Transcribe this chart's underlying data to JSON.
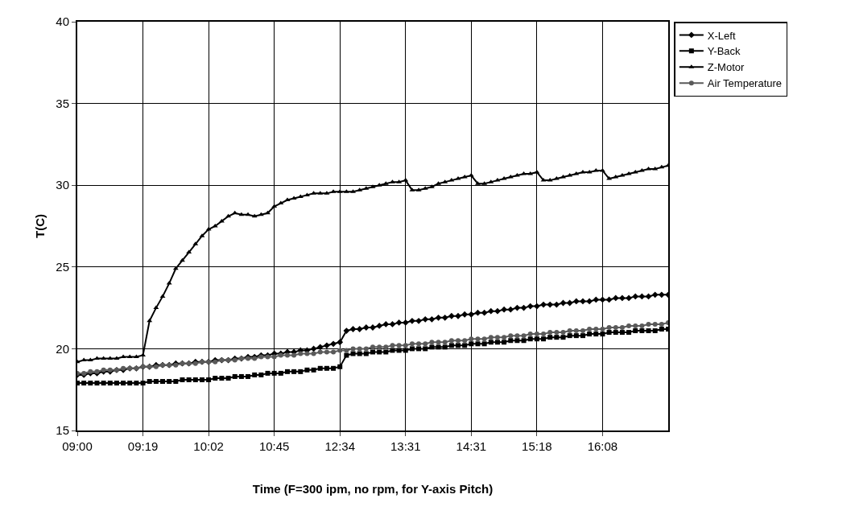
{
  "chart_data": {
    "type": "line",
    "xlabel": "Time (F=300 ipm, no rpm, for Y-axis Pitch)",
    "ylabel": "T(C)",
    "categories": [
      "09:00",
      null,
      null,
      null,
      null,
      null,
      null,
      null,
      null,
      null,
      "09:19",
      null,
      null,
      null,
      null,
      null,
      null,
      null,
      null,
      null,
      "10:02",
      null,
      null,
      null,
      null,
      null,
      null,
      null,
      null,
      null,
      "10:45",
      null,
      null,
      null,
      null,
      null,
      null,
      null,
      null,
      null,
      "12:34",
      null,
      null,
      null,
      null,
      null,
      null,
      null,
      null,
      null,
      "13:31",
      null,
      null,
      null,
      null,
      null,
      null,
      null,
      null,
      null,
      "14:31",
      null,
      null,
      null,
      null,
      null,
      null,
      null,
      null,
      null,
      "15:18",
      null,
      null,
      null,
      null,
      null,
      null,
      null,
      null,
      null,
      "16:08",
      null,
      null,
      null,
      null,
      null,
      null,
      null,
      null,
      null,
      null
    ],
    "ylim": [
      15,
      40
    ],
    "yticks": [
      15,
      20,
      25,
      30,
      35,
      40
    ],
    "grid": true,
    "legend": "top right",
    "series": [
      {
        "name": "X-Left",
        "color": "#000000",
        "marker": "diamond",
        "values": [
          18.4,
          18.4,
          18.5,
          18.5,
          18.6,
          18.6,
          18.7,
          18.7,
          18.8,
          18.8,
          18.9,
          18.9,
          19.0,
          19.0,
          19.0,
          19.1,
          19.1,
          19.1,
          19.2,
          19.2,
          19.2,
          19.3,
          19.3,
          19.3,
          19.4,
          19.4,
          19.5,
          19.5,
          19.6,
          19.6,
          19.7,
          19.7,
          19.8,
          19.8,
          19.9,
          19.9,
          20.0,
          20.1,
          20.2,
          20.3,
          20.4,
          21.1,
          21.2,
          21.2,
          21.3,
          21.3,
          21.4,
          21.5,
          21.5,
          21.6,
          21.6,
          21.7,
          21.7,
          21.8,
          21.8,
          21.9,
          21.9,
          22.0,
          22.0,
          22.1,
          22.1,
          22.2,
          22.2,
          22.3,
          22.3,
          22.4,
          22.4,
          22.5,
          22.5,
          22.6,
          22.6,
          22.7,
          22.7,
          22.7,
          22.8,
          22.8,
          22.9,
          22.9,
          22.9,
          23.0,
          23.0,
          23.0,
          23.1,
          23.1,
          23.1,
          23.2,
          23.2,
          23.2,
          23.3,
          23.3,
          23.3
        ]
      },
      {
        "name": "Y-Back",
        "color": "#000000",
        "marker": "square",
        "values": [
          17.9,
          17.9,
          17.9,
          17.9,
          17.9,
          17.9,
          17.9,
          17.9,
          17.9,
          17.9,
          17.9,
          18.0,
          18.0,
          18.0,
          18.0,
          18.0,
          18.1,
          18.1,
          18.1,
          18.1,
          18.1,
          18.2,
          18.2,
          18.2,
          18.3,
          18.3,
          18.3,
          18.4,
          18.4,
          18.5,
          18.5,
          18.5,
          18.6,
          18.6,
          18.6,
          18.7,
          18.7,
          18.8,
          18.8,
          18.8,
          18.9,
          19.6,
          19.7,
          19.7,
          19.7,
          19.8,
          19.8,
          19.8,
          19.9,
          19.9,
          19.9,
          20.0,
          20.0,
          20.0,
          20.1,
          20.1,
          20.1,
          20.2,
          20.2,
          20.2,
          20.3,
          20.3,
          20.3,
          20.4,
          20.4,
          20.4,
          20.5,
          20.5,
          20.5,
          20.6,
          20.6,
          20.6,
          20.7,
          20.7,
          20.7,
          20.8,
          20.8,
          20.8,
          20.9,
          20.9,
          20.9,
          21.0,
          21.0,
          21.0,
          21.0,
          21.1,
          21.1,
          21.1,
          21.1,
          21.2,
          21.2
        ]
      },
      {
        "name": "Z-Motor",
        "color": "#000000",
        "marker": "triangle",
        "values": [
          19.2,
          19.3,
          19.3,
          19.4,
          19.4,
          19.4,
          19.4,
          19.5,
          19.5,
          19.5,
          19.6,
          21.7,
          22.5,
          23.2,
          24.0,
          24.9,
          25.4,
          25.9,
          26.4,
          26.9,
          27.3,
          27.5,
          27.8,
          28.1,
          28.3,
          28.2,
          28.2,
          28.1,
          28.2,
          28.3,
          28.7,
          28.9,
          29.1,
          29.2,
          29.3,
          29.4,
          29.5,
          29.5,
          29.5,
          29.6,
          29.6,
          29.6,
          29.6,
          29.7,
          29.8,
          29.9,
          30.0,
          30.1,
          30.2,
          30.2,
          30.3,
          29.7,
          29.7,
          29.8,
          29.9,
          30.1,
          30.2,
          30.3,
          30.4,
          30.5,
          30.6,
          30.1,
          30.1,
          30.2,
          30.3,
          30.4,
          30.5,
          30.6,
          30.7,
          30.7,
          30.8,
          30.3,
          30.3,
          30.4,
          30.5,
          30.6,
          30.7,
          30.8,
          30.8,
          30.9,
          30.9,
          30.4,
          30.5,
          30.6,
          30.7,
          30.8,
          30.9,
          31.0,
          31.0,
          31.1,
          31.2
        ]
      },
      {
        "name": "Air Temperature",
        "color": "#5a5a5a",
        "marker": "circle",
        "values": [
          18.5,
          18.5,
          18.6,
          18.6,
          18.7,
          18.7,
          18.7,
          18.8,
          18.8,
          18.8,
          18.9,
          18.9,
          18.9,
          19.0,
          19.0,
          19.0,
          19.1,
          19.1,
          19.1,
          19.2,
          19.2,
          19.2,
          19.3,
          19.3,
          19.3,
          19.4,
          19.4,
          19.4,
          19.5,
          19.5,
          19.5,
          19.6,
          19.6,
          19.6,
          19.7,
          19.7,
          19.7,
          19.8,
          19.8,
          19.8,
          19.9,
          19.9,
          20.0,
          20.0,
          20.0,
          20.1,
          20.1,
          20.1,
          20.2,
          20.2,
          20.2,
          20.3,
          20.3,
          20.3,
          20.4,
          20.4,
          20.4,
          20.5,
          20.5,
          20.5,
          20.6,
          20.6,
          20.6,
          20.7,
          20.7,
          20.7,
          20.8,
          20.8,
          20.8,
          20.9,
          20.9,
          20.9,
          21.0,
          21.0,
          21.0,
          21.1,
          21.1,
          21.1,
          21.2,
          21.2,
          21.2,
          21.3,
          21.3,
          21.3,
          21.4,
          21.4,
          21.4,
          21.5,
          21.5,
          21.5,
          21.6
        ]
      }
    ]
  }
}
